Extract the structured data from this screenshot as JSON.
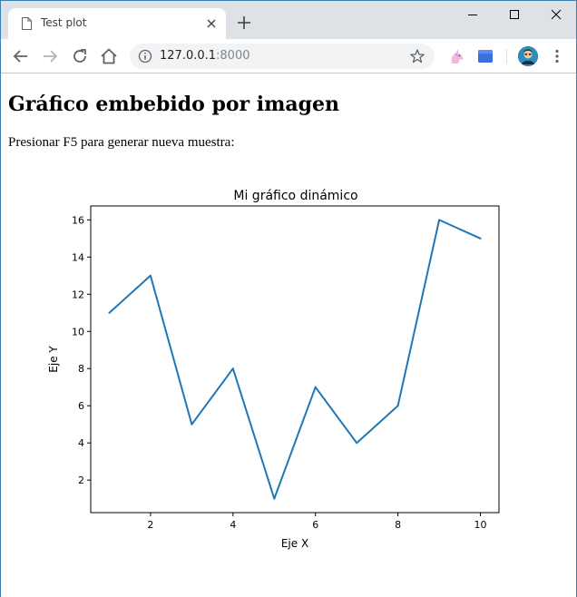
{
  "browser": {
    "tab_title": "Test plot",
    "url_host": "127.0.0.1",
    "url_port": ":8000"
  },
  "page": {
    "heading": "Gráfico embebido por imagen",
    "instruction": "Presionar F5 para generar nueva muestra:"
  },
  "chart_data": {
    "type": "line",
    "title": "Mi gráfico dinámico",
    "xlabel": "Eje X",
    "ylabel": "Eje Y",
    "x": [
      1,
      2,
      3,
      4,
      5,
      6,
      7,
      8,
      9,
      10
    ],
    "series": [
      {
        "values": [
          11,
          13,
          5,
          8,
          1,
          7,
          4,
          6,
          16,
          15
        ],
        "color": "#1f77b4"
      }
    ],
    "xlim": [
      0.55,
      10.45
    ],
    "ylim": [
      0.25,
      16.75
    ],
    "xticks": [
      2,
      4,
      6,
      8,
      10
    ],
    "yticks": [
      2,
      4,
      6,
      8,
      10,
      12,
      14,
      16
    ],
    "grid": false
  }
}
